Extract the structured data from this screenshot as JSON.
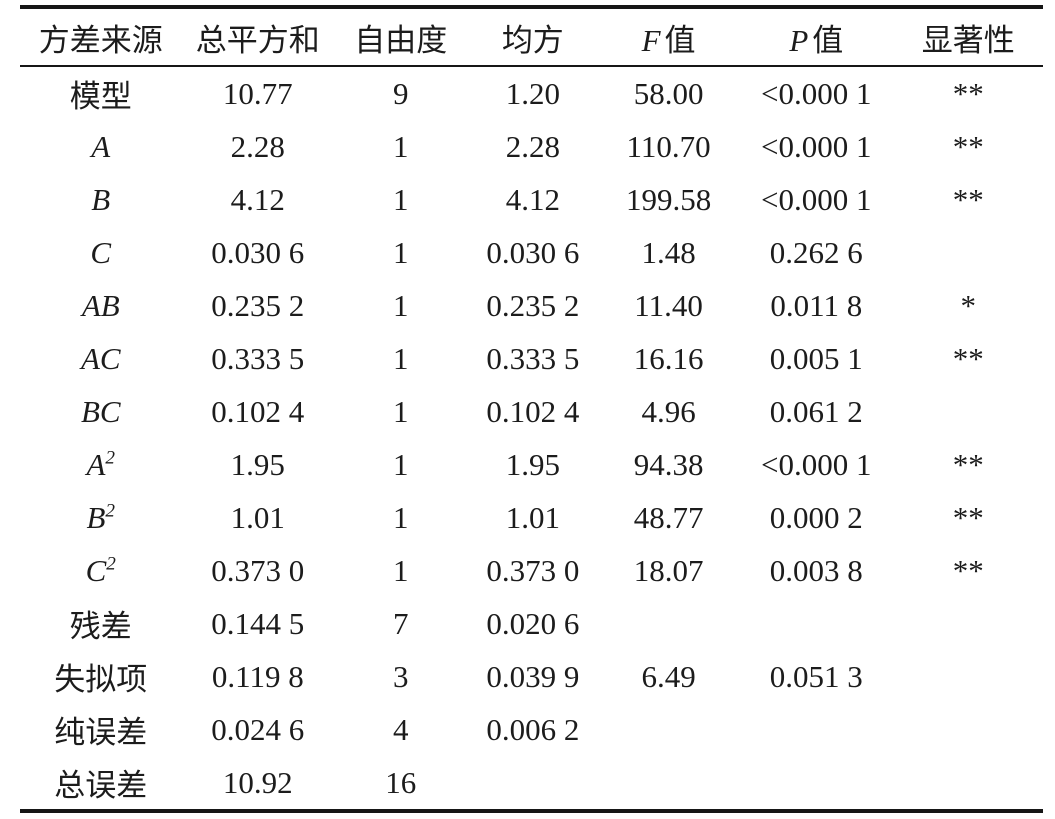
{
  "table": {
    "colors": {
      "text": "#1c1c1c",
      "rule": "#161616",
      "background": "#ffffff"
    },
    "columns": [
      {
        "italic_part": "",
        "label": "方差来源"
      },
      {
        "italic_part": "",
        "label": "总平方和"
      },
      {
        "italic_part": "",
        "label": "自由度"
      },
      {
        "italic_part": "",
        "label": "均方"
      },
      {
        "italic_part": "F",
        "label": "值"
      },
      {
        "italic_part": "P",
        "label": "值"
      },
      {
        "italic_part": "",
        "label": "显著性"
      }
    ],
    "rows": [
      {
        "source": "模型",
        "italic": false,
        "values": [
          "10.77",
          "9",
          "1.20",
          "58.00",
          "<0.000 1",
          "**"
        ]
      },
      {
        "source": "A",
        "italic": true,
        "values": [
          "2.28",
          "1",
          "2.28",
          "110.70",
          "<0.000 1",
          "**"
        ]
      },
      {
        "source": "B",
        "italic": true,
        "values": [
          "4.12",
          "1",
          "4.12",
          "199.58",
          "<0.000 1",
          "**"
        ]
      },
      {
        "source": "C",
        "italic": true,
        "values": [
          "0.030 6",
          "1",
          "0.030 6",
          "1.48",
          "0.262 6",
          ""
        ]
      },
      {
        "source": "AB",
        "italic": true,
        "values": [
          "0.235 2",
          "1",
          "0.235 2",
          "11.40",
          "0.011 8",
          "*"
        ]
      },
      {
        "source": "AC",
        "italic": true,
        "values": [
          "0.333 5",
          "1",
          "0.333 5",
          "16.16",
          "0.005 1",
          "**"
        ]
      },
      {
        "source": "BC",
        "italic": true,
        "values": [
          "0.102 4",
          "1",
          "0.102 4",
          "4.96",
          "0.061 2",
          ""
        ]
      },
      {
        "source": "A^2",
        "italic": true,
        "values": [
          "1.95",
          "1",
          "1.95",
          "94.38",
          "<0.000 1",
          "**"
        ]
      },
      {
        "source": "B^2",
        "italic": true,
        "values": [
          "1.01",
          "1",
          "1.01",
          "48.77",
          "0.000 2",
          "**"
        ]
      },
      {
        "source": "C^2",
        "italic": true,
        "values": [
          "0.373 0",
          "1",
          "0.373 0",
          "18.07",
          "0.003 8",
          "**"
        ]
      },
      {
        "source": "残差",
        "italic": false,
        "values": [
          "0.144 5",
          "7",
          "0.020 6",
          "",
          "",
          ""
        ]
      },
      {
        "source": "失拟项",
        "italic": false,
        "values": [
          "0.119 8",
          "3",
          "0.039 9",
          "6.49",
          "0.051 3",
          ""
        ]
      },
      {
        "source": "纯误差",
        "italic": false,
        "values": [
          "0.024 6",
          "4",
          "0.006 2",
          "",
          "",
          ""
        ]
      },
      {
        "source": "总误差",
        "italic": false,
        "values": [
          "10.92",
          "16",
          "",
          "",
          "",
          ""
        ]
      }
    ],
    "column_widths_pct": [
      15.79,
      14.91,
      13.05,
      12.76,
      13.78,
      15.1,
      14.61
    ]
  }
}
